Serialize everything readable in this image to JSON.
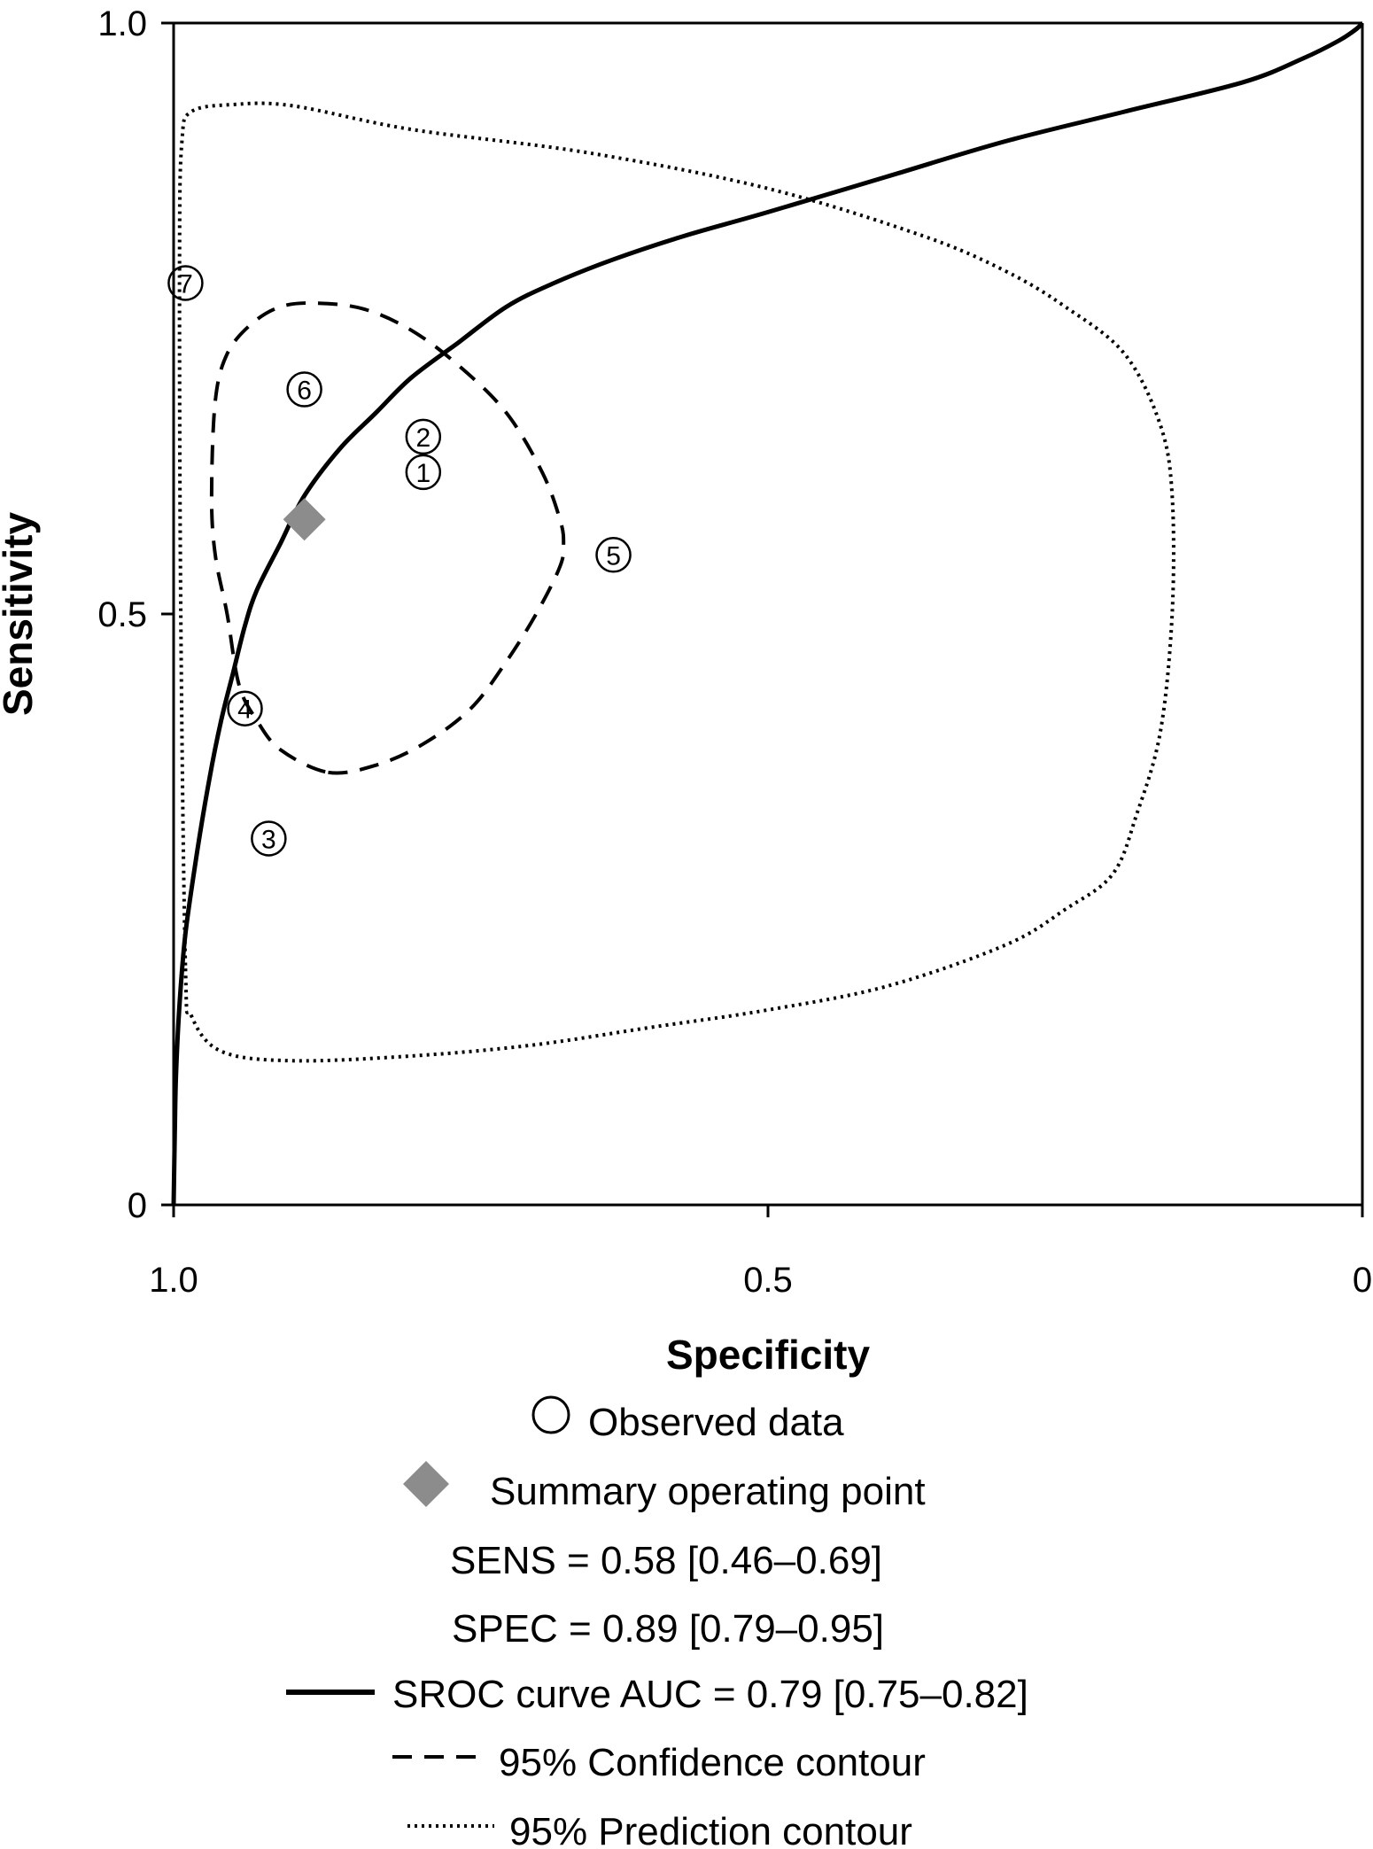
{
  "chart_data": {
    "type": "scatter",
    "xlabel": "Specificity",
    "ylabel": "Sensitivity",
    "x_reversed": true,
    "xlim": [
      1.0,
      0
    ],
    "ylim": [
      0,
      1.0
    ],
    "x_ticks": [
      {
        "value": 1.0,
        "label": "1.0"
      },
      {
        "value": 0.5,
        "label": "0.5"
      },
      {
        "value": 0,
        "label": "0"
      }
    ],
    "y_ticks": [
      {
        "value": 0,
        "label": "0"
      },
      {
        "value": 0.5,
        "label": "0.5"
      },
      {
        "value": 1.0,
        "label": "1.0"
      }
    ],
    "observed_data": [
      {
        "label": "1",
        "specificity": 0.79,
        "sensitivity": 0.62
      },
      {
        "label": "2",
        "specificity": 0.79,
        "sensitivity": 0.65
      },
      {
        "label": "3",
        "specificity": 0.92,
        "sensitivity": 0.31
      },
      {
        "label": "4",
        "specificity": 0.94,
        "sensitivity": 0.42
      },
      {
        "label": "5",
        "specificity": 0.63,
        "sensitivity": 0.55
      },
      {
        "label": "6",
        "specificity": 0.89,
        "sensitivity": 0.69
      },
      {
        "label": "7",
        "specificity": 0.99,
        "sensitivity": 0.78
      }
    ],
    "summary_point": {
      "specificity": 0.89,
      "sensitivity": 0.58
    },
    "sroc_curve": {
      "specificity": [
        1.0,
        0.999,
        0.998,
        0.995,
        0.99,
        0.98,
        0.97,
        0.96,
        0.95,
        0.94,
        0.93,
        0.91,
        0.89,
        0.86,
        0.83,
        0.8,
        0.76,
        0.72,
        0.68,
        0.63,
        0.57,
        0.5,
        0.4,
        0.3,
        0.2,
        0.1,
        0.05,
        0.02,
        0.005,
        0
      ],
      "sensitivity": [
        0.0,
        0.06,
        0.11,
        0.17,
        0.23,
        0.3,
        0.36,
        0.41,
        0.45,
        0.49,
        0.52,
        0.56,
        0.6,
        0.64,
        0.67,
        0.7,
        0.73,
        0.76,
        0.78,
        0.8,
        0.82,
        0.84,
        0.87,
        0.9,
        0.925,
        0.95,
        0.97,
        0.985,
        0.995,
        1.0
      ]
    },
    "confidence_contour": {
      "specificity": [
        0.87,
        0.83,
        0.79,
        0.75,
        0.72,
        0.695,
        0.675,
        0.672,
        0.675,
        0.69,
        0.72,
        0.76,
        0.8,
        0.84,
        0.88,
        0.91,
        0.935,
        0.955,
        0.965,
        0.968,
        0.965,
        0.955,
        0.945,
        0.93,
        0.91,
        0.87
      ],
      "sensitivity": [
        0.366,
        0.372,
        0.39,
        0.42,
        0.46,
        0.5,
        0.54,
        0.56,
        0.58,
        0.62,
        0.67,
        0.71,
        0.74,
        0.758,
        0.763,
        0.76,
        0.745,
        0.72,
        0.68,
        0.6,
        0.55,
        0.5,
        0.44,
        0.41,
        0.385,
        0.366
      ]
    },
    "prediction_contour": {
      "specificity": [
        0.99,
        0.985,
        0.96,
        0.9,
        0.8,
        0.7,
        0.6,
        0.5,
        0.4,
        0.3,
        0.25,
        0.21,
        0.19,
        0.17,
        0.16,
        0.16,
        0.17,
        0.2,
        0.25,
        0.3,
        0.37,
        0.5,
        0.65,
        0.8,
        0.9,
        0.95,
        0.985,
        0.993,
        0.995,
        0.994,
        0.99
      ],
      "sensitivity": [
        0.2,
        0.16,
        0.13,
        0.122,
        0.126,
        0.135,
        0.15,
        0.165,
        0.185,
        0.22,
        0.25,
        0.28,
        0.33,
        0.4,
        0.5,
        0.6,
        0.66,
        0.72,
        0.76,
        0.79,
        0.82,
        0.86,
        0.89,
        0.91,
        0.93,
        0.931,
        0.925,
        0.9,
        0.8,
        0.5,
        0.2
      ]
    },
    "legend": {
      "observed": "Observed data",
      "summary": "Summary operating point",
      "sens": "SENS = 0.58 [0.46–0.69]",
      "spec": "SPEC = 0.89 [0.79–0.95]",
      "sroc": "SROC curve AUC = 0.79 [0.75–0.82]",
      "confidence": "95% Confidence contour",
      "prediction": "95% Prediction contour",
      "placement": "bottom"
    },
    "colors": {
      "curve": "#000000",
      "summary_point": "#8c8c8c",
      "background": "#ffffff"
    }
  }
}
